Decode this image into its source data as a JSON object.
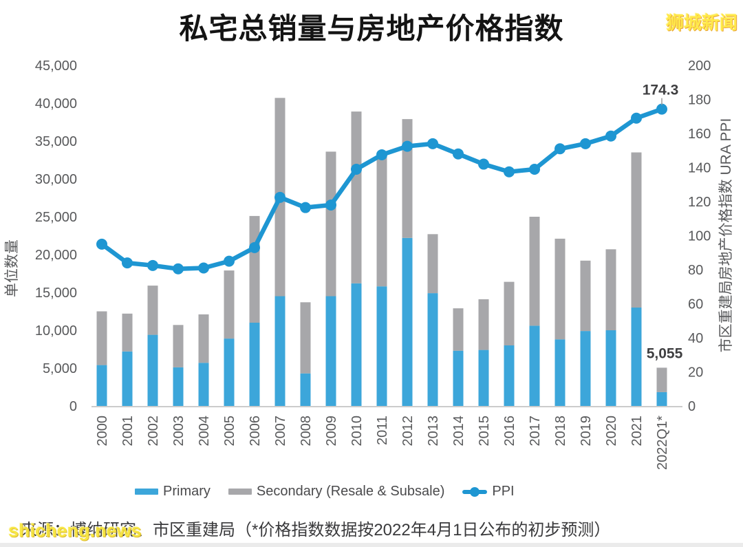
{
  "title": "私宅总销量与房地产价格指数",
  "watermark_top_right": "狮城新闻",
  "watermark_bottom_left": "shicheng.news",
  "source_note": "来源：博纳研究、市区重建局（*价格指数数据按2022年4月1日公布的初步预测）",
  "legend": {
    "primary": "Primary",
    "secondary": "Secondary (Resale & Subsale)",
    "ppi": "PPI"
  },
  "colors": {
    "primary_bar": "#3ca6da",
    "secondary_bar": "#a7a7aa",
    "ppi_line": "#1e96d2",
    "tick_text": "#58595b",
    "annotation_text": "#3f3f41",
    "baseline": "#cccccc",
    "watermark_yellow": "#ffe94a"
  },
  "chart_data": {
    "type": "bar",
    "stacked": true,
    "grid": false,
    "legend_position": "bottom",
    "categories": [
      "2000",
      "2001",
      "2002",
      "2003",
      "2004",
      "2005",
      "2006",
      "2007",
      "2008",
      "2009",
      "2010",
      "2011",
      "2012",
      "2013",
      "2014",
      "2015",
      "2016",
      "2017",
      "2018",
      "2019",
      "2020",
      "2021",
      "2022Q1*"
    ],
    "series": [
      {
        "name": "Primary",
        "type": "bar",
        "axis": "left",
        "values": [
          5400,
          7200,
          9400,
          5100,
          5700,
          8900,
          11000,
          14500,
          4300,
          14500,
          16200,
          15800,
          22200,
          14900,
          7300,
          7400,
          8000,
          10600,
          8800,
          9900,
          10000,
          13000,
          1825
        ]
      },
      {
        "name": "Secondary (Resale & Subsale)",
        "type": "bar",
        "axis": "left",
        "values": [
          7100,
          5000,
          6500,
          5600,
          6400,
          9000,
          14100,
          26200,
          9400,
          19100,
          22700,
          17300,
          15700,
          7800,
          5600,
          6700,
          8400,
          14400,
          13300,
          9300,
          10700,
          20500,
          3230
        ]
      },
      {
        "name": "PPI",
        "type": "line",
        "axis": "right",
        "values": [
          95,
          84,
          82.5,
          80.5,
          81,
          85,
          93,
          122.5,
          116.5,
          118,
          139,
          147.5,
          152.5,
          154,
          148,
          142,
          137.5,
          139,
          151,
          154,
          158.5,
          169,
          174.3
        ]
      }
    ],
    "left_axis": {
      "label": "单位数量",
      "min": 0,
      "max": 45000,
      "step": 5000
    },
    "right_axis": {
      "label": "市区重建局房地产价格指数 URA PPI",
      "min": 0,
      "max": 200,
      "step": 20
    },
    "annotations": [
      {
        "series": "PPI",
        "category": "2022Q1*",
        "label": "174.3"
      },
      {
        "series": "total_sales",
        "category": "2022Q1*",
        "label": "5,055"
      }
    ]
  }
}
